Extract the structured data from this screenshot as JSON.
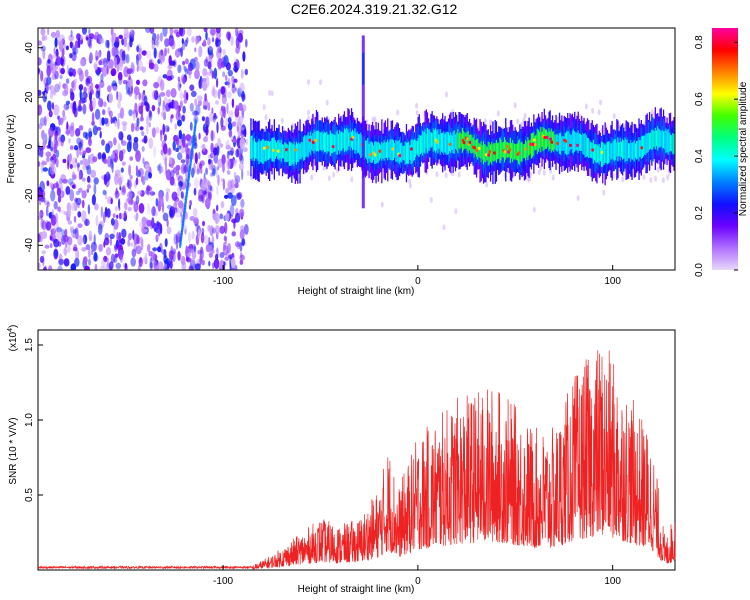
{
  "title": "C2E6.2024.319.21.32.G12",
  "chart_data": [
    {
      "type": "heatmap",
      "xlabel": "Height of straight line (km)",
      "ylabel": "Frequency (Hz)",
      "xlim": [
        -195,
        132
      ],
      "ylim": [
        -50,
        48
      ],
      "xticks": [
        -100,
        0,
        100
      ],
      "yticks": [
        -40,
        -20,
        0,
        20,
        40
      ],
      "colorbar": {
        "label": "Normalized spectral amplitude",
        "range": [
          0,
          0.85
        ],
        "ticks": [
          "0.0",
          "0.2",
          "0.4",
          "0.6",
          "0.8"
        ],
        "colormap": [
          "#e8d8f8",
          "#b070ff",
          "#6a00ff",
          "#1010ff",
          "#0080ff",
          "#00ffff",
          "#00ff80",
          "#40ff00",
          "#ffff00",
          "#ff8000",
          "#ff0000",
          "#ff00a0"
        ]
      },
      "features": {
        "noise_region_x": [
          -195,
          -88
        ],
        "signal_band_center_hz": 0,
        "signal_band_halfwidth_hz": 8,
        "spike_x_km": -28,
        "spike_max_hz": 45,
        "strong_segment_x": [
          20,
          70
        ]
      }
    },
    {
      "type": "line",
      "xlabel": "Height of straight line (km)",
      "ylabel": "SNR (10 * V/V)",
      "multiplier": "(x10",
      "multiplier_exp": "4",
      "multiplier_close": ")",
      "xlim": [
        -195,
        132
      ],
      "ylim": [
        0,
        1.6
      ],
      "xticks": [
        -100,
        0,
        100
      ],
      "yticks": [
        0.5,
        1.0,
        1.5
      ],
      "line_color": "#ee2222",
      "envelope": [
        {
          "x": -195,
          "y": 0.02
        },
        {
          "x": -85,
          "y": 0.03
        },
        {
          "x": -75,
          "y": 0.1
        },
        {
          "x": -60,
          "y": 0.25
        },
        {
          "x": -50,
          "y": 0.35
        },
        {
          "x": -40,
          "y": 0.3
        },
        {
          "x": -30,
          "y": 0.35
        },
        {
          "x": -20,
          "y": 0.55
        },
        {
          "x": -15,
          "y": 0.85
        },
        {
          "x": -10,
          "y": 0.55
        },
        {
          "x": 0,
          "y": 0.9
        },
        {
          "x": 20,
          "y": 1.15
        },
        {
          "x": 40,
          "y": 1.25
        },
        {
          "x": 50,
          "y": 1.1
        },
        {
          "x": 60,
          "y": 0.95
        },
        {
          "x": 70,
          "y": 0.95
        },
        {
          "x": 80,
          "y": 1.3
        },
        {
          "x": 95,
          "y": 1.55
        },
        {
          "x": 110,
          "y": 1.15
        },
        {
          "x": 120,
          "y": 0.9
        },
        {
          "x": 127,
          "y": 0.2
        },
        {
          "x": 132,
          "y": 0.4
        }
      ]
    }
  ]
}
